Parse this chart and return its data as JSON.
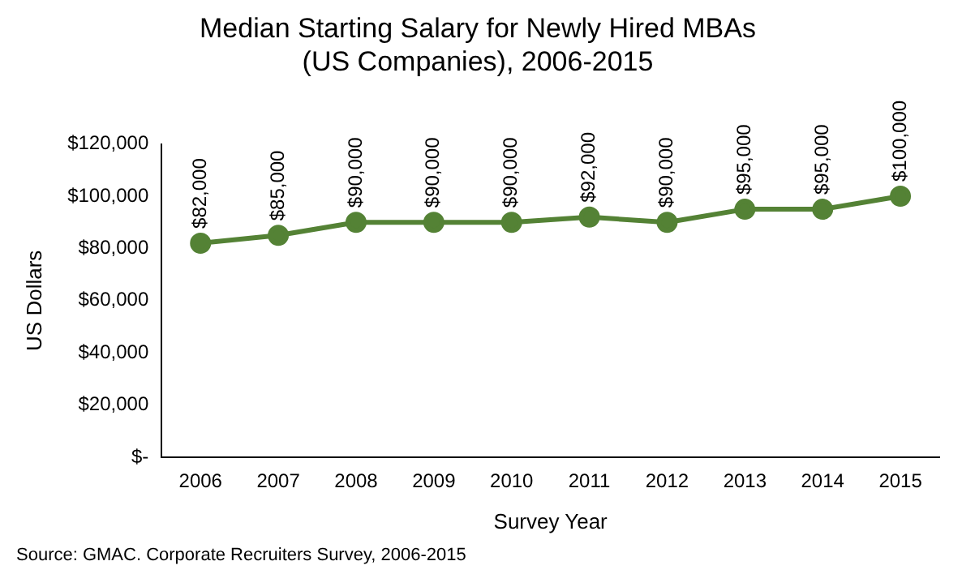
{
  "chart_data": {
    "type": "line",
    "title": "Median Starting Salary for Newly Hired MBAs\n(US Companies), 2006-2015",
    "xlabel": "Survey Year",
    "ylabel": "US Dollars",
    "categories": [
      "2006",
      "2007",
      "2008",
      "2009",
      "2010",
      "2011",
      "2012",
      "2013",
      "2014",
      "2015"
    ],
    "series": [
      {
        "color": "#548235",
        "values": [
          82000,
          85000,
          90000,
          90000,
          90000,
          92000,
          90000,
          95000,
          95000,
          100000
        ],
        "value_labels": [
          "$82,000",
          "$85,000",
          "$90,000",
          "$90,000",
          "$90,000",
          "$92,000",
          "$90,000",
          "$95,000",
          "$95,000",
          "$100,000"
        ]
      }
    ],
    "ylim": [
      0,
      120000
    ],
    "yticks": [
      {
        "value": 0,
        "label": "$-"
      },
      {
        "value": 20000,
        "label": "$20,000"
      },
      {
        "value": 40000,
        "label": "$40,000"
      },
      {
        "value": 60000,
        "label": "$60,000"
      },
      {
        "value": 80000,
        "label": "$80,000"
      },
      {
        "value": 100000,
        "label": "$100,000"
      },
      {
        "value": 120000,
        "label": "$120,000"
      }
    ],
    "grid": false,
    "legend": false,
    "marker": "circle",
    "line_style": "solid",
    "annotations": [
      "Source: GMAC. Corporate Recruiters Survey, 2006-2015"
    ]
  }
}
